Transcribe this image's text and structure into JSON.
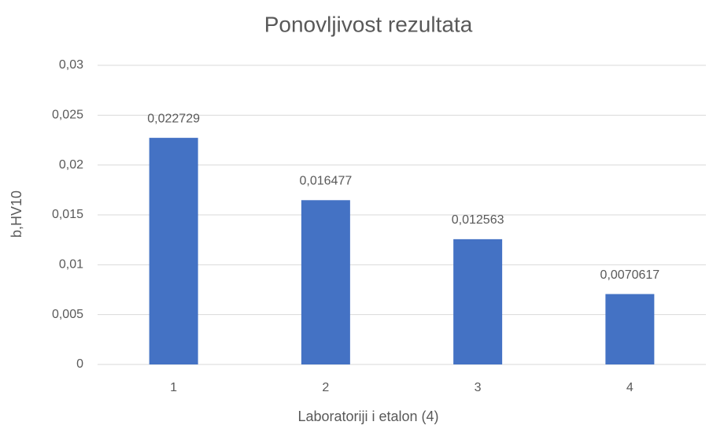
{
  "chart_data": {
    "type": "bar",
    "title": "Ponovljivost rezultata",
    "x_label": "Laboratoriji i etalon (4)",
    "y_label": "b,HV10",
    "categories": [
      "1",
      "2",
      "3",
      "4"
    ],
    "values": [
      0.022729,
      0.016477,
      0.012563,
      0.0070617
    ],
    "value_labels": [
      "0,022729",
      "0,016477",
      "0,012563",
      "0,0070617"
    ],
    "color": "#4472c4",
    "ylim": [
      0,
      0.03
    ],
    "yticks": [
      0,
      {
        "value": 0.005,
        "label": "0,005"
      },
      {
        "value": 0.01,
        "label": "0,01"
      },
      {
        "value": 0.015,
        "label": "0,015"
      },
      {
        "value": 0.02,
        "label": "0,02"
      },
      {
        "value": 0.025,
        "label": "0,025"
      },
      {
        "value": 0.03,
        "label": "0,03"
      }
    ],
    "grid": true
  }
}
